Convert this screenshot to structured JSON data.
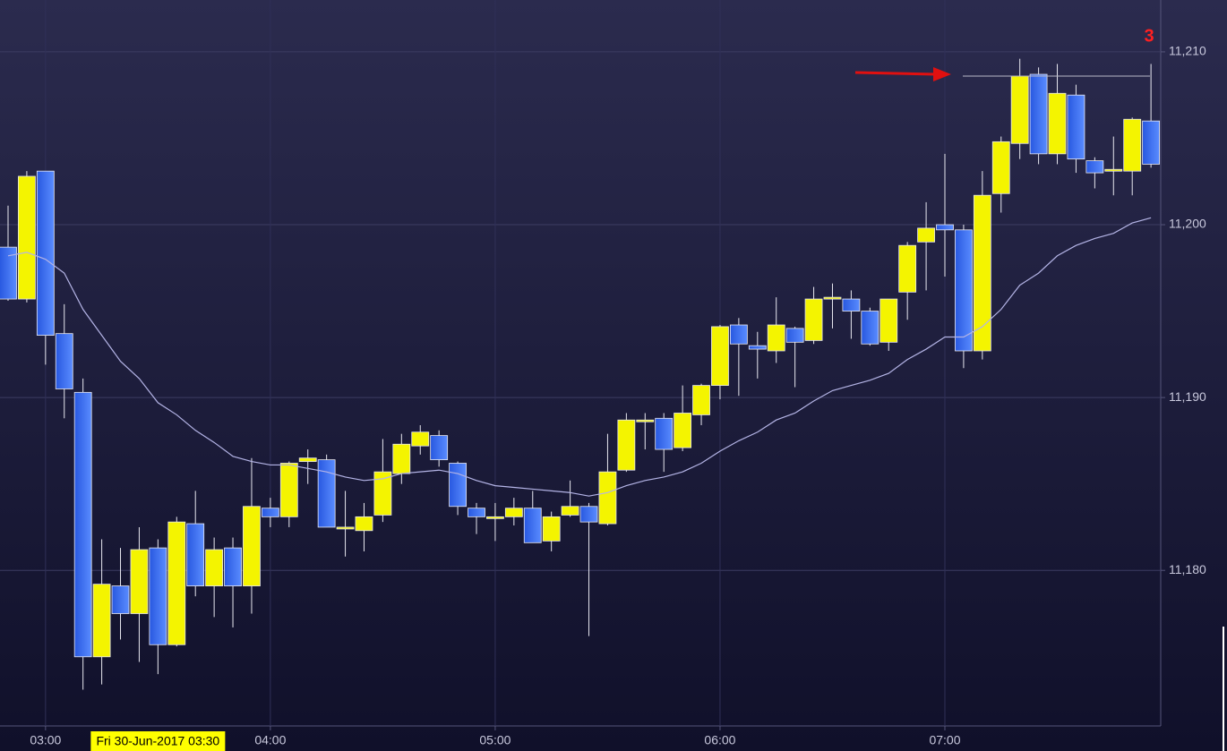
{
  "chart_data": {
    "type": "candlestick",
    "marker_label": "3",
    "categories": [
      null,
      null,
      "03:00",
      null,
      null,
      null,
      null,
      null,
      "Fri 30-Jun-2017 03:30",
      null,
      null,
      null,
      null,
      null,
      "04:00",
      null,
      null,
      null,
      null,
      null,
      null,
      null,
      null,
      null,
      null,
      null,
      "05:00",
      null,
      null,
      null,
      null,
      null,
      null,
      null,
      null,
      null,
      null,
      null,
      "06:00",
      null,
      null,
      null,
      null,
      null,
      null,
      null,
      null,
      null,
      null,
      null,
      "07:00",
      null,
      null,
      null,
      null,
      null,
      null,
      null,
      null,
      null,
      null,
      null
    ],
    "open": [
      11198.7,
      11195.7,
      11203.1,
      11193.7,
      11190.3,
      11175.0,
      11179.1,
      11177.5,
      11181.3,
      11175.7,
      11182.7,
      11179.1,
      11181.3,
      11179.1,
      11183.6,
      11183.1,
      11186.3,
      11186.4,
      11182.5,
      11182.3,
      11183.2,
      11185.6,
      11187.2,
      11187.8,
      11186.2,
      11183.6,
      11183.1,
      11183.1,
      11183.6,
      11181.7,
      11183.2,
      11183.7,
      11182.7,
      11185.8,
      11188.7,
      11188.8,
      11187.1,
      11189.0,
      11190.7,
      11194.2,
      11193.0,
      11192.7,
      11194.0,
      11193.3,
      11195.7,
      11195.7,
      11195.0,
      11193.2,
      11196.1,
      11199.0,
      11200.0,
      11199.7,
      11192.7,
      11201.8,
      11204.7,
      11208.7,
      11204.1,
      11207.5,
      11203.7,
      11203.1,
      11203.1,
      11206.0
    ],
    "high": [
      11201.1,
      11203.1,
      11203.1,
      11195.4,
      11191.1,
      11181.8,
      11181.3,
      11182.5,
      11181.8,
      11183.1,
      11184.6,
      11181.9,
      11181.9,
      11186.5,
      11184.2,
      11186.3,
      11187.0,
      11186.7,
      11184.6,
      11183.9,
      11187.6,
      11187.9,
      11188.4,
      11188.1,
      11186.3,
      11183.9,
      11183.9,
      11184.2,
      11184.6,
      11183.4,
      11185.2,
      11183.9,
      11187.9,
      11189.1,
      11189.1,
      11189.1,
      11190.7,
      11190.8,
      11194.2,
      11194.6,
      11193.8,
      11195.8,
      11194.1,
      11196.4,
      11196.6,
      11196.2,
      11195.2,
      11195.7,
      11199.0,
      11201.3,
      11204.1,
      11200.0,
      11203.1,
      11205.1,
      11209.6,
      11209.1,
      11209.3,
      11208.1,
      11203.9,
      11205.1,
      11206.2,
      11209.3
    ],
    "low": [
      11195.6,
      11195.5,
      11191.9,
      11188.8,
      11173.1,
      11173.4,
      11176.0,
      11174.7,
      11174.0,
      11175.6,
      11178.5,
      11177.3,
      11176.7,
      11177.5,
      11182.5,
      11182.5,
      11185.0,
      11182.5,
      11180.8,
      11181.1,
      11182.8,
      11185.0,
      11186.7,
      11186.0,
      11183.2,
      11182.1,
      11181.7,
      11182.6,
      11181.6,
      11181.1,
      11183.1,
      11176.2,
      11182.6,
      11185.7,
      11187.0,
      11185.7,
      11186.9,
      11188.4,
      11189.9,
      11190.1,
      11191.1,
      11192.0,
      11190.6,
      11193.1,
      11194.0,
      11193.4,
      11193.0,
      11192.7,
      11194.5,
      11196.2,
      11197.0,
      11191.7,
      11192.2,
      11200.7,
      11203.8,
      11203.5,
      11203.5,
      11203.0,
      11202.1,
      11201.7,
      11201.7,
      11203.3
    ],
    "close": [
      11195.7,
      11202.8,
      11193.6,
      11190.5,
      11175.0,
      11179.2,
      11177.5,
      11181.2,
      11175.7,
      11182.8,
      11179.1,
      11181.2,
      11179.1,
      11183.7,
      11183.1,
      11186.2,
      11186.5,
      11182.5,
      11182.5,
      11183.1,
      11185.7,
      11187.3,
      11188.0,
      11186.4,
      11183.7,
      11183.1,
      11183.1,
      11183.6,
      11181.6,
      11183.1,
      11183.7,
      11182.8,
      11185.7,
      11188.7,
      11188.7,
      11187.0,
      11189.1,
      11190.7,
      11194.1,
      11193.1,
      11192.8,
      11194.2,
      11193.2,
      11195.7,
      11195.8,
      11195.0,
      11193.1,
      11195.7,
      11198.8,
      11199.8,
      11199.7,
      11192.7,
      11201.7,
      11204.8,
      11208.6,
      11204.1,
      11207.6,
      11203.8,
      11203.0,
      11203.2,
      11206.1,
      11203.5
    ],
    "moving_average": [
      11198.2,
      11198.4,
      11198.0,
      11197.2,
      11195.1,
      11193.6,
      11192.1,
      11191.1,
      11189.7,
      11189.0,
      11188.1,
      11187.4,
      11186.6,
      11186.3,
      11186.1,
      11186.1,
      11185.9,
      11185.7,
      11185.4,
      11185.2,
      11185.3,
      11185.6,
      11185.7,
      11185.8,
      11185.6,
      11185.2,
      11184.9,
      11184.8,
      11184.7,
      11184.6,
      11184.5,
      11184.3,
      11184.5,
      11184.9,
      11185.2,
      11185.4,
      11185.7,
      11186.2,
      11186.9,
      11187.5,
      11188.0,
      11188.7,
      11189.1,
      11189.8,
      11190.4,
      11190.7,
      11191.0,
      11191.4,
      11192.2,
      11192.8,
      11193.5,
      11193.5,
      11194.1,
      11195.1,
      11196.5,
      11197.2,
      11198.2,
      11198.8,
      11199.2,
      11199.5,
      11200.1,
      11200.4
    ],
    "up_color": "#f4f400",
    "down_color": "#3a6cf2",
    "ma_color": "#b4b4e6",
    "level_line": 11208.6,
    "ylim": [
      11171,
      11213
    ],
    "yticks": [
      {
        "value": 11180,
        "label": "11,180"
      },
      {
        "value": 11190,
        "label": "11,190"
      },
      {
        "value": 11200,
        "label": "11,200"
      },
      {
        "value": 11210,
        "label": "11,210"
      }
    ],
    "grid": true
  }
}
